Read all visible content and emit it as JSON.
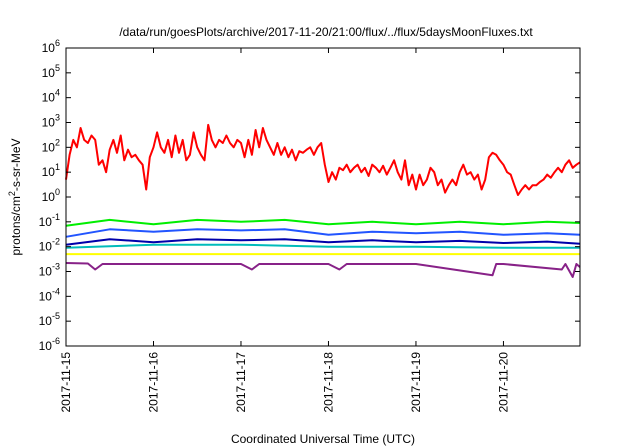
{
  "chart_data": {
    "type": "line",
    "title": "/data/run/goesPlots/archive/2017-11-20/21:00/flux/../flux/5daysMoonFluxes.txt",
    "xlabel": "Coordinated Universal Time (UTC)",
    "ylabel": {
      "pre": "protons/cm",
      "sup": "2",
      "post": "-s-sr-MeV"
    },
    "xlim": [
      "2017-11-15",
      "2017-11-20T21:00"
    ],
    "ylim": [
      1e-06,
      1000000.0
    ],
    "yscale": "log",
    "x_ticks": [
      "2017-11-15",
      "2017-11-16",
      "2017-11-17",
      "2017-11-18",
      "2017-11-19",
      "2017-11-20"
    ],
    "y_ticks": [
      {
        "base": "10",
        "exp": "-6",
        "value": 1e-06
      },
      {
        "base": "10",
        "exp": "-5",
        "value": 1e-05
      },
      {
        "base": "10",
        "exp": "-4",
        "value": 0.0001
      },
      {
        "base": "10",
        "exp": "-3",
        "value": 0.001
      },
      {
        "base": "10",
        "exp": "-2",
        "value": 0.01
      },
      {
        "base": "10",
        "exp": "-1",
        "value": 0.1
      },
      {
        "base": "10",
        "exp": "0",
        "value": 1
      },
      {
        "base": "10",
        "exp": "1",
        "value": 10
      },
      {
        "base": "10",
        "exp": "2",
        "value": 100
      },
      {
        "base": "10",
        "exp": "3",
        "value": 1000
      },
      {
        "base": "10",
        "exp": "4",
        "value": 10000
      },
      {
        "base": "10",
        "exp": "5",
        "value": 100000
      },
      {
        "base": "10",
        "exp": "6",
        "value": 1000000
      }
    ],
    "grid": false,
    "legend": "none",
    "series": [
      {
        "color": "#ff0000",
        "points": [
          [
            "2017-11-15T00:00",
            5
          ],
          [
            "2017-11-15T01:00",
            50
          ],
          [
            "2017-11-15T02:00",
            200
          ],
          [
            "2017-11-15T03:00",
            100
          ],
          [
            "2017-11-15T04:00",
            600
          ],
          [
            "2017-11-15T05:00",
            200
          ],
          [
            "2017-11-15T06:00",
            150
          ],
          [
            "2017-11-15T07:00",
            300
          ],
          [
            "2017-11-15T08:00",
            200
          ],
          [
            "2017-11-15T09:00",
            20
          ],
          [
            "2017-11-15T10:00",
            30
          ],
          [
            "2017-11-15T11:00",
            10
          ],
          [
            "2017-11-15T12:00",
            80
          ],
          [
            "2017-11-15T13:00",
            200
          ],
          [
            "2017-11-15T14:00",
            60
          ],
          [
            "2017-11-15T15:00",
            300
          ],
          [
            "2017-11-15T16:00",
            30
          ],
          [
            "2017-11-15T17:00",
            80
          ],
          [
            "2017-11-15T18:00",
            40
          ],
          [
            "2017-11-15T19:00",
            50
          ],
          [
            "2017-11-15T20:00",
            30
          ],
          [
            "2017-11-15T21:00",
            20
          ],
          [
            "2017-11-15T22:00",
            2
          ],
          [
            "2017-11-15T23:00",
            40
          ],
          [
            "2017-11-16T00:00",
            100
          ],
          [
            "2017-11-16T01:00",
            400
          ],
          [
            "2017-11-16T02:00",
            100
          ],
          [
            "2017-11-16T03:00",
            60
          ],
          [
            "2017-11-16T04:00",
            200
          ],
          [
            "2017-11-16T05:00",
            40
          ],
          [
            "2017-11-16T06:00",
            300
          ],
          [
            "2017-11-16T07:00",
            60
          ],
          [
            "2017-11-16T08:00",
            200
          ],
          [
            "2017-11-16T09:00",
            30
          ],
          [
            "2017-11-16T10:00",
            50
          ],
          [
            "2017-11-16T11:00",
            400
          ],
          [
            "2017-11-16T12:00",
            100
          ],
          [
            "2017-11-16T13:00",
            50
          ],
          [
            "2017-11-16T14:00",
            30
          ],
          [
            "2017-11-16T15:00",
            800
          ],
          [
            "2017-11-16T16:00",
            200
          ],
          [
            "2017-11-16T17:00",
            100
          ],
          [
            "2017-11-16T18:00",
            200
          ],
          [
            "2017-11-16T19:00",
            150
          ],
          [
            "2017-11-16T20:00",
            300
          ],
          [
            "2017-11-16T21:00",
            150
          ],
          [
            "2017-11-16T22:00",
            100
          ],
          [
            "2017-11-16T23:00",
            200
          ],
          [
            "2017-11-17T00:00",
            150
          ],
          [
            "2017-11-17T01:00",
            40
          ],
          [
            "2017-11-17T02:00",
            200
          ],
          [
            "2017-11-17T03:00",
            50
          ],
          [
            "2017-11-17T04:00",
            500
          ],
          [
            "2017-11-17T05:00",
            100
          ],
          [
            "2017-11-17T06:00",
            600
          ],
          [
            "2017-11-17T07:00",
            200
          ],
          [
            "2017-11-17T08:00",
            100
          ],
          [
            "2017-11-17T09:00",
            50
          ],
          [
            "2017-11-17T10:00",
            150
          ],
          [
            "2017-11-17T11:00",
            50
          ],
          [
            "2017-11-17T12:00",
            100
          ],
          [
            "2017-11-17T13:00",
            40
          ],
          [
            "2017-11-17T14:00",
            80
          ],
          [
            "2017-11-17T15:00",
            30
          ],
          [
            "2017-11-17T16:00",
            70
          ],
          [
            "2017-11-17T17:00",
            60
          ],
          [
            "2017-11-17T18:00",
            80
          ],
          [
            "2017-11-17T19:00",
            100
          ],
          [
            "2017-11-17T20:00",
            50
          ],
          [
            "2017-11-17T21:00",
            100
          ],
          [
            "2017-11-17T22:00",
            150
          ],
          [
            "2017-11-17T23:00",
            20
          ],
          [
            "2017-11-18T00:00",
            4
          ],
          [
            "2017-11-18T01:00",
            10
          ],
          [
            "2017-11-18T02:00",
            5
          ],
          [
            "2017-11-18T03:00",
            15
          ],
          [
            "2017-11-18T04:00",
            12
          ],
          [
            "2017-11-18T05:00",
            20
          ],
          [
            "2017-11-18T06:00",
            10
          ],
          [
            "2017-11-18T07:00",
            15
          ],
          [
            "2017-11-18T08:00",
            20
          ],
          [
            "2017-11-18T09:00",
            10
          ],
          [
            "2017-11-18T10:00",
            15
          ],
          [
            "2017-11-18T11:00",
            7
          ],
          [
            "2017-11-18T12:00",
            20
          ],
          [
            "2017-11-18T13:00",
            15
          ],
          [
            "2017-11-18T14:00",
            10
          ],
          [
            "2017-11-18T15:00",
            18
          ],
          [
            "2017-11-18T16:00",
            8
          ],
          [
            "2017-11-18T17:00",
            15
          ],
          [
            "2017-11-18T18:00",
            30
          ],
          [
            "2017-11-18T19:00",
            10
          ],
          [
            "2017-11-18T20:00",
            5
          ],
          [
            "2017-11-18T21:00",
            30
          ],
          [
            "2017-11-18T22:00",
            3
          ],
          [
            "2017-11-18T23:00",
            8
          ],
          [
            "2017-11-19T00:00",
            2
          ],
          [
            "2017-11-19T01:00",
            8
          ],
          [
            "2017-11-19T02:00",
            3
          ],
          [
            "2017-11-19T03:00",
            5
          ],
          [
            "2017-11-19T04:00",
            15
          ],
          [
            "2017-11-19T05:00",
            10
          ],
          [
            "2017-11-19T06:00",
            3
          ],
          [
            "2017-11-19T07:00",
            5
          ],
          [
            "2017-11-19T08:00",
            1.5
          ],
          [
            "2017-11-19T09:00",
            3
          ],
          [
            "2017-11-19T10:00",
            5
          ],
          [
            "2017-11-19T11:00",
            3
          ],
          [
            "2017-11-19T12:00",
            10
          ],
          [
            "2017-11-19T13:00",
            20
          ],
          [
            "2017-11-19T14:00",
            8
          ],
          [
            "2017-11-19T15:00",
            10
          ],
          [
            "2017-11-19T16:00",
            5
          ],
          [
            "2017-11-19T17:00",
            8
          ],
          [
            "2017-11-19T18:00",
            2
          ],
          [
            "2017-11-19T19:00",
            5
          ],
          [
            "2017-11-19T20:00",
            40
          ],
          [
            "2017-11-19T21:00",
            60
          ],
          [
            "2017-11-19T22:00",
            50
          ],
          [
            "2017-11-19T23:00",
            30
          ],
          [
            "2017-11-20T00:00",
            20
          ],
          [
            "2017-11-20T01:00",
            10
          ],
          [
            "2017-11-20T02:00",
            8
          ],
          [
            "2017-11-20T03:00",
            3
          ],
          [
            "2017-11-20T04:00",
            1.2
          ],
          [
            "2017-11-20T05:00",
            2
          ],
          [
            "2017-11-20T06:00",
            3
          ],
          [
            "2017-11-20T07:00",
            2
          ],
          [
            "2017-11-20T08:00",
            3
          ],
          [
            "2017-11-20T09:00",
            3
          ],
          [
            "2017-11-20T10:00",
            4
          ],
          [
            "2017-11-20T11:00",
            5
          ],
          [
            "2017-11-20T12:00",
            8
          ],
          [
            "2017-11-20T13:00",
            6
          ],
          [
            "2017-11-20T14:00",
            10
          ],
          [
            "2017-11-20T15:00",
            15
          ],
          [
            "2017-11-20T16:00",
            10
          ],
          [
            "2017-11-20T17:00",
            20
          ],
          [
            "2017-11-20T18:00",
            30
          ],
          [
            "2017-11-20T19:00",
            15
          ],
          [
            "2017-11-20T20:00",
            20
          ],
          [
            "2017-11-20T21:00",
            25
          ]
        ]
      },
      {
        "color": "#00ee00",
        "points": [
          [
            "2017-11-15T00:00",
            0.07
          ],
          [
            "2017-11-15T12:00",
            0.12
          ],
          [
            "2017-11-16T00:00",
            0.08
          ],
          [
            "2017-11-16T12:00",
            0.12
          ],
          [
            "2017-11-17T00:00",
            0.1
          ],
          [
            "2017-11-17T12:00",
            0.12
          ],
          [
            "2017-11-18T00:00",
            0.08
          ],
          [
            "2017-11-18T12:00",
            0.1
          ],
          [
            "2017-11-19T00:00",
            0.08
          ],
          [
            "2017-11-19T12:00",
            0.1
          ],
          [
            "2017-11-20T00:00",
            0.08
          ],
          [
            "2017-11-20T12:00",
            0.1
          ],
          [
            "2017-11-20T21:00",
            0.09
          ]
        ]
      },
      {
        "color": "#2255ff",
        "points": [
          [
            "2017-11-15T00:00",
            0.025
          ],
          [
            "2017-11-15T12:00",
            0.05
          ],
          [
            "2017-11-16T00:00",
            0.04
          ],
          [
            "2017-11-16T12:00",
            0.05
          ],
          [
            "2017-11-17T00:00",
            0.045
          ],
          [
            "2017-11-17T12:00",
            0.05
          ],
          [
            "2017-11-18T00:00",
            0.03
          ],
          [
            "2017-11-18T12:00",
            0.04
          ],
          [
            "2017-11-19T00:00",
            0.035
          ],
          [
            "2017-11-19T12:00",
            0.04
          ],
          [
            "2017-11-20T00:00",
            0.03
          ],
          [
            "2017-11-20T12:00",
            0.035
          ],
          [
            "2017-11-20T21:00",
            0.03
          ]
        ]
      },
      {
        "color": "#00bbbb",
        "points": [
          [
            "2017-11-15T00:00",
            0.009
          ],
          [
            "2017-11-16T00:00",
            0.012
          ],
          [
            "2017-11-17T00:00",
            0.012
          ],
          [
            "2017-11-18T00:00",
            0.01
          ],
          [
            "2017-11-19T00:00",
            0.01
          ],
          [
            "2017-11-20T00:00",
            0.009
          ],
          [
            "2017-11-20T21:00",
            0.009
          ]
        ]
      },
      {
        "color": "#0000aa",
        "points": [
          [
            "2017-11-15T00:00",
            0.012
          ],
          [
            "2017-11-15T12:00",
            0.02
          ],
          [
            "2017-11-16T00:00",
            0.015
          ],
          [
            "2017-11-16T12:00",
            0.02
          ],
          [
            "2017-11-17T00:00",
            0.018
          ],
          [
            "2017-11-17T12:00",
            0.02
          ],
          [
            "2017-11-18T00:00",
            0.015
          ],
          [
            "2017-11-18T12:00",
            0.018
          ],
          [
            "2017-11-19T00:00",
            0.015
          ],
          [
            "2017-11-19T12:00",
            0.017
          ],
          [
            "2017-11-20T00:00",
            0.014
          ],
          [
            "2017-11-20T12:00",
            0.016
          ],
          [
            "2017-11-20T21:00",
            0.013
          ]
        ]
      },
      {
        "color": "#ffff00",
        "points": [
          [
            "2017-11-15T00:00",
            0.005
          ],
          [
            "2017-11-16T00:00",
            0.005
          ],
          [
            "2017-11-17T00:00",
            0.005
          ],
          [
            "2017-11-18T00:00",
            0.005
          ],
          [
            "2017-11-19T00:00",
            0.005
          ],
          [
            "2017-11-20T00:00",
            0.005
          ],
          [
            "2017-11-20T21:00",
            0.005
          ]
        ]
      },
      {
        "color": "#882288",
        "points": [
          [
            "2017-11-15T00:00",
            0.0022
          ],
          [
            "2017-11-15T06:00",
            0.0021
          ],
          [
            "2017-11-15T08:00",
            0.0012
          ],
          [
            "2017-11-15T10:00",
            0.002
          ],
          [
            "2017-11-16T00:00",
            0.002
          ],
          [
            "2017-11-17T00:00",
            0.002
          ],
          [
            "2017-11-17T03:00",
            0.0012
          ],
          [
            "2017-11-17T05:00",
            0.002
          ],
          [
            "2017-11-18T00:00",
            0.002
          ],
          [
            "2017-11-18T03:00",
            0.0012
          ],
          [
            "2017-11-18T05:00",
            0.002
          ],
          [
            "2017-11-19T00:00",
            0.002
          ],
          [
            "2017-11-19T21:00",
            0.0007
          ],
          [
            "2017-11-19T22:00",
            0.002
          ],
          [
            "2017-11-20T00:00",
            0.002
          ],
          [
            "2017-11-20T16:00",
            0.0012
          ],
          [
            "2017-11-20T17:00",
            0.002
          ],
          [
            "2017-11-20T19:00",
            0.0006
          ],
          [
            "2017-11-20T20:00",
            0.002
          ],
          [
            "2017-11-20T21:00",
            0.0015
          ]
        ]
      }
    ]
  }
}
